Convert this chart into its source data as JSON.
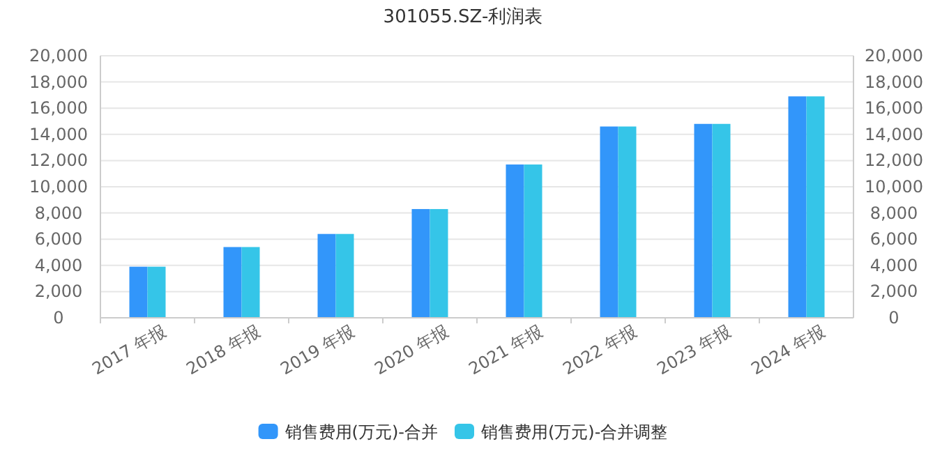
{
  "chart_data": {
    "type": "bar",
    "title": "301055.SZ-利润表",
    "categories": [
      "2017 年报",
      "2018 年报",
      "2019 年报",
      "2020 年报",
      "2021 年报",
      "2022 年报",
      "2023 年报",
      "2024 年报"
    ],
    "series": [
      {
        "name": "销售费用(万元)-合并",
        "color": "#3296fa",
        "values": [
          3900,
          5400,
          6400,
          8300,
          11700,
          14600,
          14800,
          16900
        ]
      },
      {
        "name": "销售费用(万元)-合并调整",
        "color": "#35c5e8",
        "values": [
          3900,
          5400,
          6400,
          8300,
          11700,
          14600,
          14800,
          16900
        ]
      }
    ],
    "ylim": [
      0,
      20000
    ],
    "yticks": [
      0,
      {
        "value": 2000,
        "label": "2,000"
      },
      {
        "value": 4000,
        "label": "4,000"
      },
      {
        "value": 6000,
        "label": "6,000"
      },
      {
        "value": 8000,
        "label": "8,000"
      },
      {
        "value": 10000,
        "label": "10,000"
      },
      {
        "value": 12000,
        "label": "12,000"
      },
      {
        "value": 14000,
        "label": "14,000"
      },
      {
        "value": 16000,
        "label": "16,000"
      },
      {
        "value": 18000,
        "label": "18,000"
      },
      {
        "value": 20000,
        "label": "20,000"
      }
    ],
    "y2lim": [
      0,
      20000
    ],
    "y2ticks": [
      0,
      {
        "value": 2000,
        "label": "2,000"
      },
      {
        "value": 4000,
        "label": "4,000"
      },
      {
        "value": 6000,
        "label": "6,000"
      },
      {
        "value": 8000,
        "label": "8,000"
      },
      {
        "value": 10000,
        "label": "10,000"
      },
      {
        "value": 12000,
        "label": "12,000"
      },
      {
        "value": 14000,
        "label": "14,000"
      },
      {
        "value": 16000,
        "label": "16,000"
      },
      {
        "value": 18000,
        "label": "18,000"
      },
      {
        "value": 20000,
        "label": "20,000"
      }
    ],
    "grid": "y",
    "legend": "bottom"
  }
}
